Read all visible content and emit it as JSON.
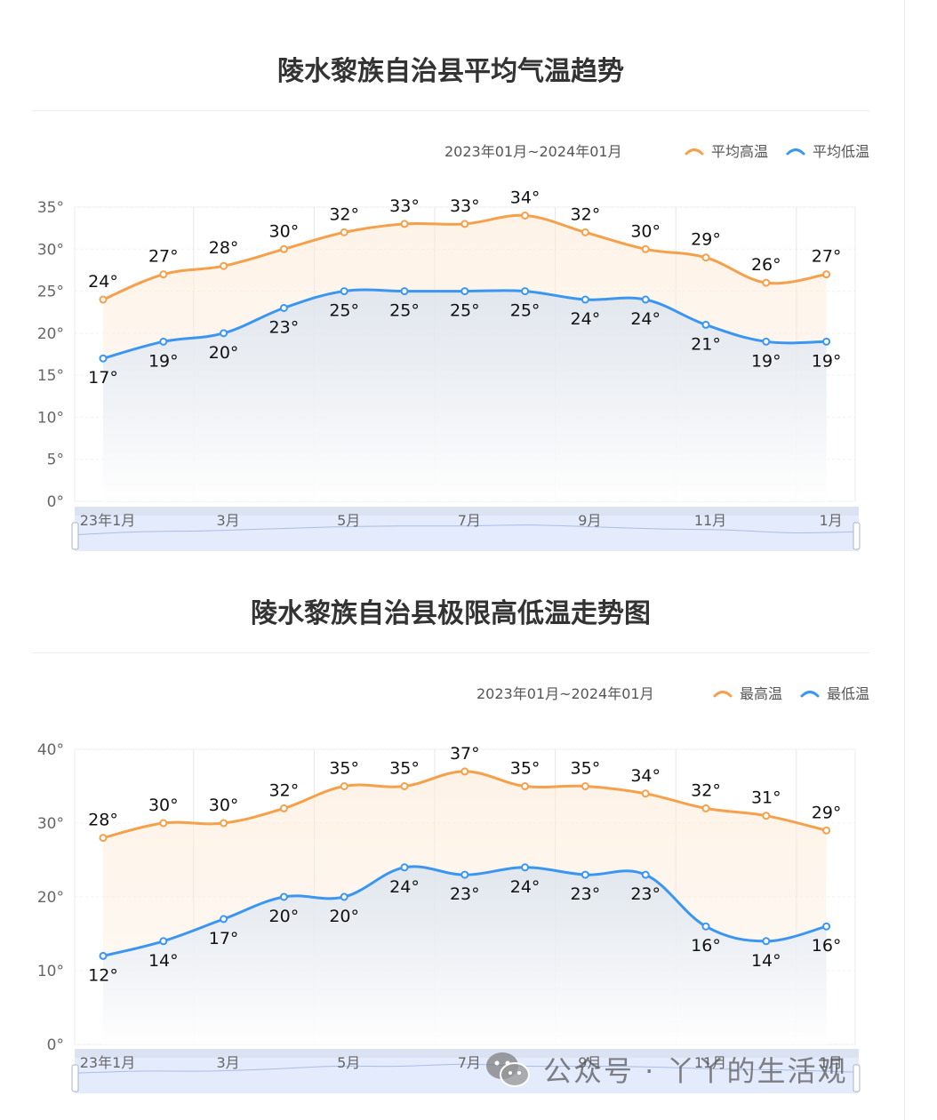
{
  "charts": [
    {
      "title": "陵水黎族自治县平均气温趋势",
      "range_label": "2023年01月~2024年01月",
      "legend": [
        {
          "name": "平均高温",
          "color": "#f5a04b"
        },
        {
          "name": "平均低温",
          "color": "#3a96f0"
        }
      ]
    },
    {
      "title": "陵水黎族自治县极限高低温走势图",
      "range_label": "2023年01月~2024年01月",
      "legend": [
        {
          "name": "最高温",
          "color": "#f5a04b"
        },
        {
          "name": "最低温",
          "color": "#3a96f0"
        }
      ]
    }
  ],
  "chart_data": [
    {
      "type": "line",
      "title": "陵水黎族自治县平均气温趋势",
      "x": [
        "2023-01",
        "2023-02",
        "2023-03",
        "2023-04",
        "2023-05",
        "2023-06",
        "2023-07",
        "2023-08",
        "2023-09",
        "2023-10",
        "2023-11",
        "2023-12",
        "2024-01"
      ],
      "x_tick_labels": [
        "23年1月",
        "3月",
        "5月",
        "7月",
        "9月",
        "11月",
        "1月"
      ],
      "y_tick_labels": [
        "0°",
        "5°",
        "10°",
        "15°",
        "20°",
        "25°",
        "30°",
        "35°"
      ],
      "ylim": [
        0,
        35
      ],
      "value_suffix": "°",
      "grid": true,
      "legend_position": "top-right",
      "series": [
        {
          "name": "平均高温",
          "color": "#f5a04b",
          "values": [
            24,
            27,
            28,
            30,
            32,
            33,
            33,
            34,
            32,
            30,
            29,
            26,
            27
          ]
        },
        {
          "name": "平均低温",
          "color": "#3a96f0",
          "values": [
            17,
            19,
            20,
            23,
            25,
            25,
            25,
            25,
            24,
            24,
            21,
            19,
            19
          ]
        }
      ]
    },
    {
      "type": "line",
      "title": "陵水黎族自治县极限高低温走势图",
      "x": [
        "2023-01",
        "2023-02",
        "2023-03",
        "2023-04",
        "2023-05",
        "2023-06",
        "2023-07",
        "2023-08",
        "2023-09",
        "2023-10",
        "2023-11",
        "2023-12",
        "2024-01"
      ],
      "x_tick_labels": [
        "23年1月",
        "3月",
        "5月",
        "7月",
        "9月",
        "11月",
        "1月"
      ],
      "y_tick_labels": [
        "0°",
        "10°",
        "20°",
        "30°",
        "40°"
      ],
      "ylim": [
        0,
        40
      ],
      "value_suffix": "°",
      "grid": true,
      "legend_position": "top-right",
      "series": [
        {
          "name": "最高温",
          "color": "#f5a04b",
          "values": [
            28,
            30,
            30,
            32,
            35,
            35,
            37,
            35,
            35,
            34,
            32,
            31,
            29
          ]
        },
        {
          "name": "最低温",
          "color": "#3a96f0",
          "values": [
            12,
            14,
            17,
            20,
            20,
            24,
            23,
            24,
            23,
            23,
            16,
            14,
            16
          ]
        }
      ]
    }
  ],
  "watermark": {
    "text": "公众号 · 丫丫的生活观",
    "icon": "wechat-icon"
  }
}
